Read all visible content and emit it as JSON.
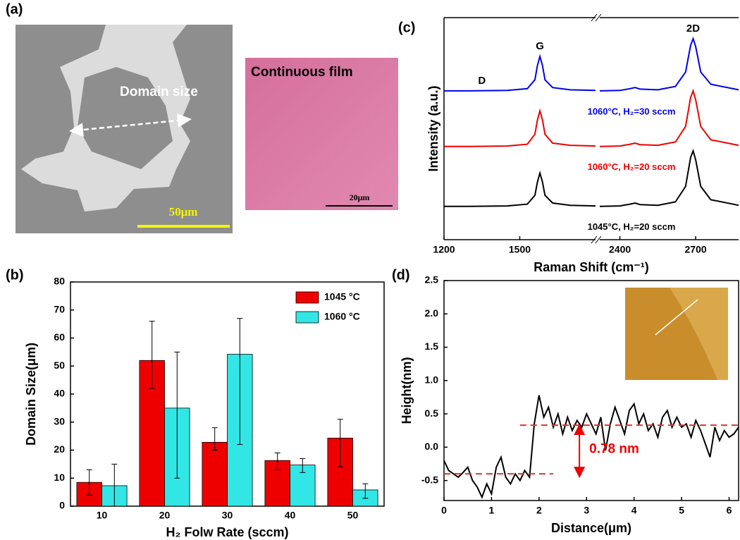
{
  "panel_labels": [
    "(a)",
    "(b)",
    "(c)",
    "(d)"
  ],
  "images": {
    "sem": {
      "annotation": "Domain size",
      "scale_bar": "50μm"
    },
    "optical": {
      "title": "Continuous film",
      "scale_bar": "20μm"
    }
  },
  "chart_data": [
    {
      "type": "bar",
      "xlabel": "H₂ Folw Rate (sccm)",
      "ylabel": "Domain Size(μm)",
      "categories": [
        "10",
        "20",
        "30",
        "40",
        "50"
      ],
      "ylim": [
        0,
        80
      ],
      "yticks": [
        0,
        10,
        20,
        30,
        40,
        50,
        60,
        70,
        80
      ],
      "legend": "upper right",
      "series": [
        {
          "name": "1045 °C",
          "color": "#ee0000",
          "values": [
            8.5,
            52,
            22.8,
            16.3,
            24.3
          ],
          "error_low": [
            4.5,
            10,
            2.8,
            3.3,
            10.3
          ],
          "error_high": [
            4.5,
            14,
            5.2,
            2.7,
            6.7
          ]
        },
        {
          "name": "1060 °C",
          "color": "#33e6e6",
          "values": [
            7.3,
            35,
            54.2,
            14.7,
            5.8
          ],
          "error_low": [
            7.3,
            25,
            32.2,
            2.7,
            3
          ],
          "error_high": [
            7.7,
            20,
            12.8,
            2.3,
            2.2
          ]
        }
      ]
    },
    {
      "type": "line",
      "xlabel": "Raman Shift (cm⁻¹)",
      "ylabel": "Intensity (a.u.)",
      "x": [
        1200,
        1300,
        1450,
        1530,
        1560,
        1570,
        1580,
        1590,
        1600,
        1630,
        1700,
        1800,
        2320,
        2400,
        2440,
        2460,
        2480,
        2550,
        2620,
        2660,
        2680,
        2690,
        2700,
        2720,
        2760,
        2870
      ],
      "xlim": [
        1200,
        2870
      ],
      "x_break": [
        1800,
        2320
      ],
      "xticks": [
        1200,
        1500,
        2400,
        2700
      ],
      "ylim": [
        0,
        10
      ],
      "peak_labels": [
        {
          "text": "D",
          "x": 1350
        },
        {
          "text": "G",
          "x": 1580
        },
        {
          "text": "2D",
          "x": 2690
        }
      ],
      "series": [
        {
          "name": "1060°C, H₂=30 sccm",
          "color": "#0000ee",
          "values": [
            6.7,
            6.7,
            6.72,
            6.8,
            7.2,
            7.85,
            8.25,
            7.85,
            7.2,
            6.85,
            6.75,
            6.72,
            6.7,
            6.72,
            6.8,
            6.85,
            6.78,
            6.75,
            6.9,
            7.55,
            8.75,
            9.05,
            8.7,
            7.55,
            7.0,
            6.75
          ]
        },
        {
          "name": "1060°C, H₂=20 sccm",
          "color": "#ee0000",
          "values": [
            4.2,
            4.2,
            4.22,
            4.3,
            4.75,
            5.4,
            5.8,
            5.4,
            4.75,
            4.35,
            4.25,
            4.22,
            4.2,
            4.22,
            4.3,
            4.35,
            4.28,
            4.25,
            4.4,
            5.1,
            6.4,
            6.7,
            6.3,
            5.1,
            4.5,
            4.25
          ]
        },
        {
          "name": "1045°C, H₂=20 sccm",
          "color": "#000000",
          "values": [
            1.5,
            1.5,
            1.52,
            1.6,
            2.0,
            2.6,
            3.0,
            2.6,
            2.0,
            1.65,
            1.55,
            1.52,
            1.5,
            1.52,
            1.6,
            1.65,
            1.58,
            1.55,
            1.7,
            2.4,
            3.7,
            4.0,
            3.6,
            2.4,
            1.8,
            1.55
          ]
        }
      ]
    },
    {
      "type": "line",
      "xlabel": "Distance(μm)",
      "ylabel": "Height(nm)",
      "x": [
        0,
        0.1,
        0.2,
        0.3,
        0.4,
        0.5,
        0.6,
        0.7,
        0.8,
        0.9,
        1.0,
        1.1,
        1.2,
        1.3,
        1.4,
        1.5,
        1.6,
        1.7,
        1.8,
        1.9,
        2.0,
        2.1,
        2.2,
        2.3,
        2.4,
        2.5,
        2.6,
        2.7,
        2.8,
        2.9,
        3.0,
        3.1,
        3.2,
        3.3,
        3.4,
        3.5,
        3.6,
        3.7,
        3.8,
        3.9,
        4.0,
        4.1,
        4.2,
        4.3,
        4.4,
        4.5,
        4.6,
        4.7,
        4.8,
        4.9,
        5.0,
        5.1,
        5.2,
        5.3,
        5.4,
        5.5,
        5.6,
        5.7,
        5.8,
        5.9,
        6.0,
        6.1,
        6.2
      ],
      "xlim": [
        0,
        6.2
      ],
      "xticks": [
        0,
        1,
        2,
        3,
        4,
        5,
        6
      ],
      "ylim": [
        -0.8,
        2.5
      ],
      "yticks": [
        -0.5,
        {
          "value": 0,
          "label": "0.0"
        },
        0.5,
        {
          "value": 1,
          "label": "1.0"
        },
        1.5,
        {
          "value": 2,
          "label": "2.0"
        },
        2.5
      ],
      "series": [
        {
          "color": "#000000",
          "values": [
            -0.2,
            -0.35,
            -0.4,
            -0.45,
            -0.38,
            -0.3,
            -0.5,
            -0.6,
            -0.75,
            -0.55,
            -0.7,
            -0.3,
            -0.15,
            -0.45,
            -0.55,
            -0.4,
            -0.5,
            -0.35,
            -0.45,
            0.35,
            0.78,
            0.45,
            0.6,
            0.3,
            0.5,
            0.2,
            0.45,
            0.25,
            0.4,
            0.3,
            0.5,
            0.35,
            0.2,
            0.45,
            -0.05,
            0.35,
            0.6,
            0.4,
            0.2,
            0.55,
            0.65,
            0.35,
            0.5,
            0.25,
            0.35,
            0.15,
            0.45,
            0.55,
            0.3,
            0.45,
            0.3,
            0.35,
            0.15,
            0.4,
            0.25,
            0.05,
            -0.15,
            0.3,
            0.1,
            0.25,
            0.15,
            0.2,
            0.3
          ]
        }
      ],
      "reference_lines": [
        {
          "y": -0.4,
          "x": [
            0,
            2.3
          ]
        },
        {
          "y": 0.33,
          "x": [
            1.6,
            6.2
          ]
        }
      ],
      "annotation": "0.78 nm"
    }
  ]
}
